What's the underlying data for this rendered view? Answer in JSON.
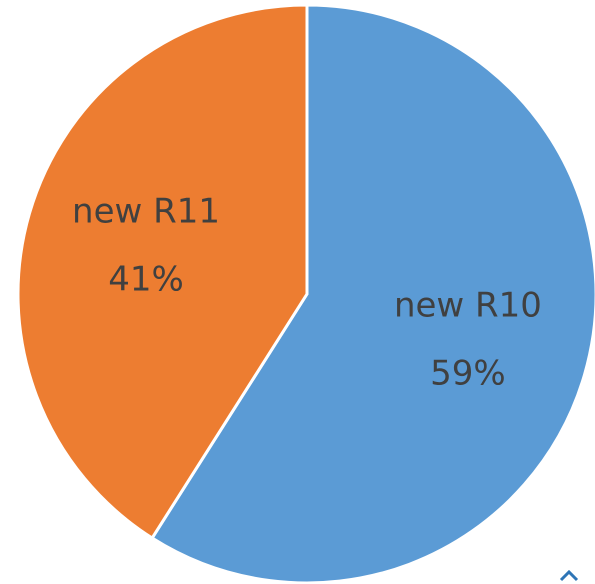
{
  "chart_data": {
    "type": "pie",
    "categories": [
      "new R10",
      "new R11"
    ],
    "values": [
      59,
      41
    ],
    "value_labels": [
      "59%",
      "41%"
    ],
    "colors": [
      "#5b9bd5",
      "#ed7d31"
    ]
  }
}
